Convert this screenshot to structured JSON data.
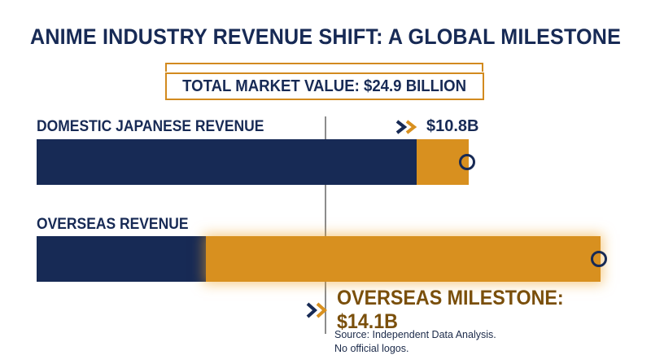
{
  "colors": {
    "navy": "#172a55",
    "gold": "#d8901f",
    "milestone_text": "#7a4f0b"
  },
  "chart_data": {
    "type": "bar",
    "orientation": "horizontal",
    "stacked": true,
    "title": "ANIME INDUSTRY REVENUE SHIFT: A GLOBAL MILESTONE",
    "subtitle": "TOTAL MARKET VALUE: $24.9 BILLION",
    "total": 24.9,
    "unit": "billion USD",
    "categories": [
      "DOMESTIC JAPANESE REVENUE",
      "OVERSEAS REVENUE"
    ],
    "bars": [
      {
        "label": "DOMESTIC JAPANESE REVENUE",
        "value": 10.8,
        "value_label": "$10.8B",
        "navy_fraction": 0.88
      },
      {
        "label": "OVERSEAS REVENUE",
        "value": 14.1,
        "value_label": "OVERSEAS MILESTONE: $14.1B",
        "navy_fraction": 0.3,
        "highlighted": true
      }
    ],
    "xlim": [
      0,
      14.1
    ],
    "grid": false,
    "legend": "none",
    "notes": [
      "Source: Independent Data Analysis.",
      "No official logos."
    ]
  }
}
